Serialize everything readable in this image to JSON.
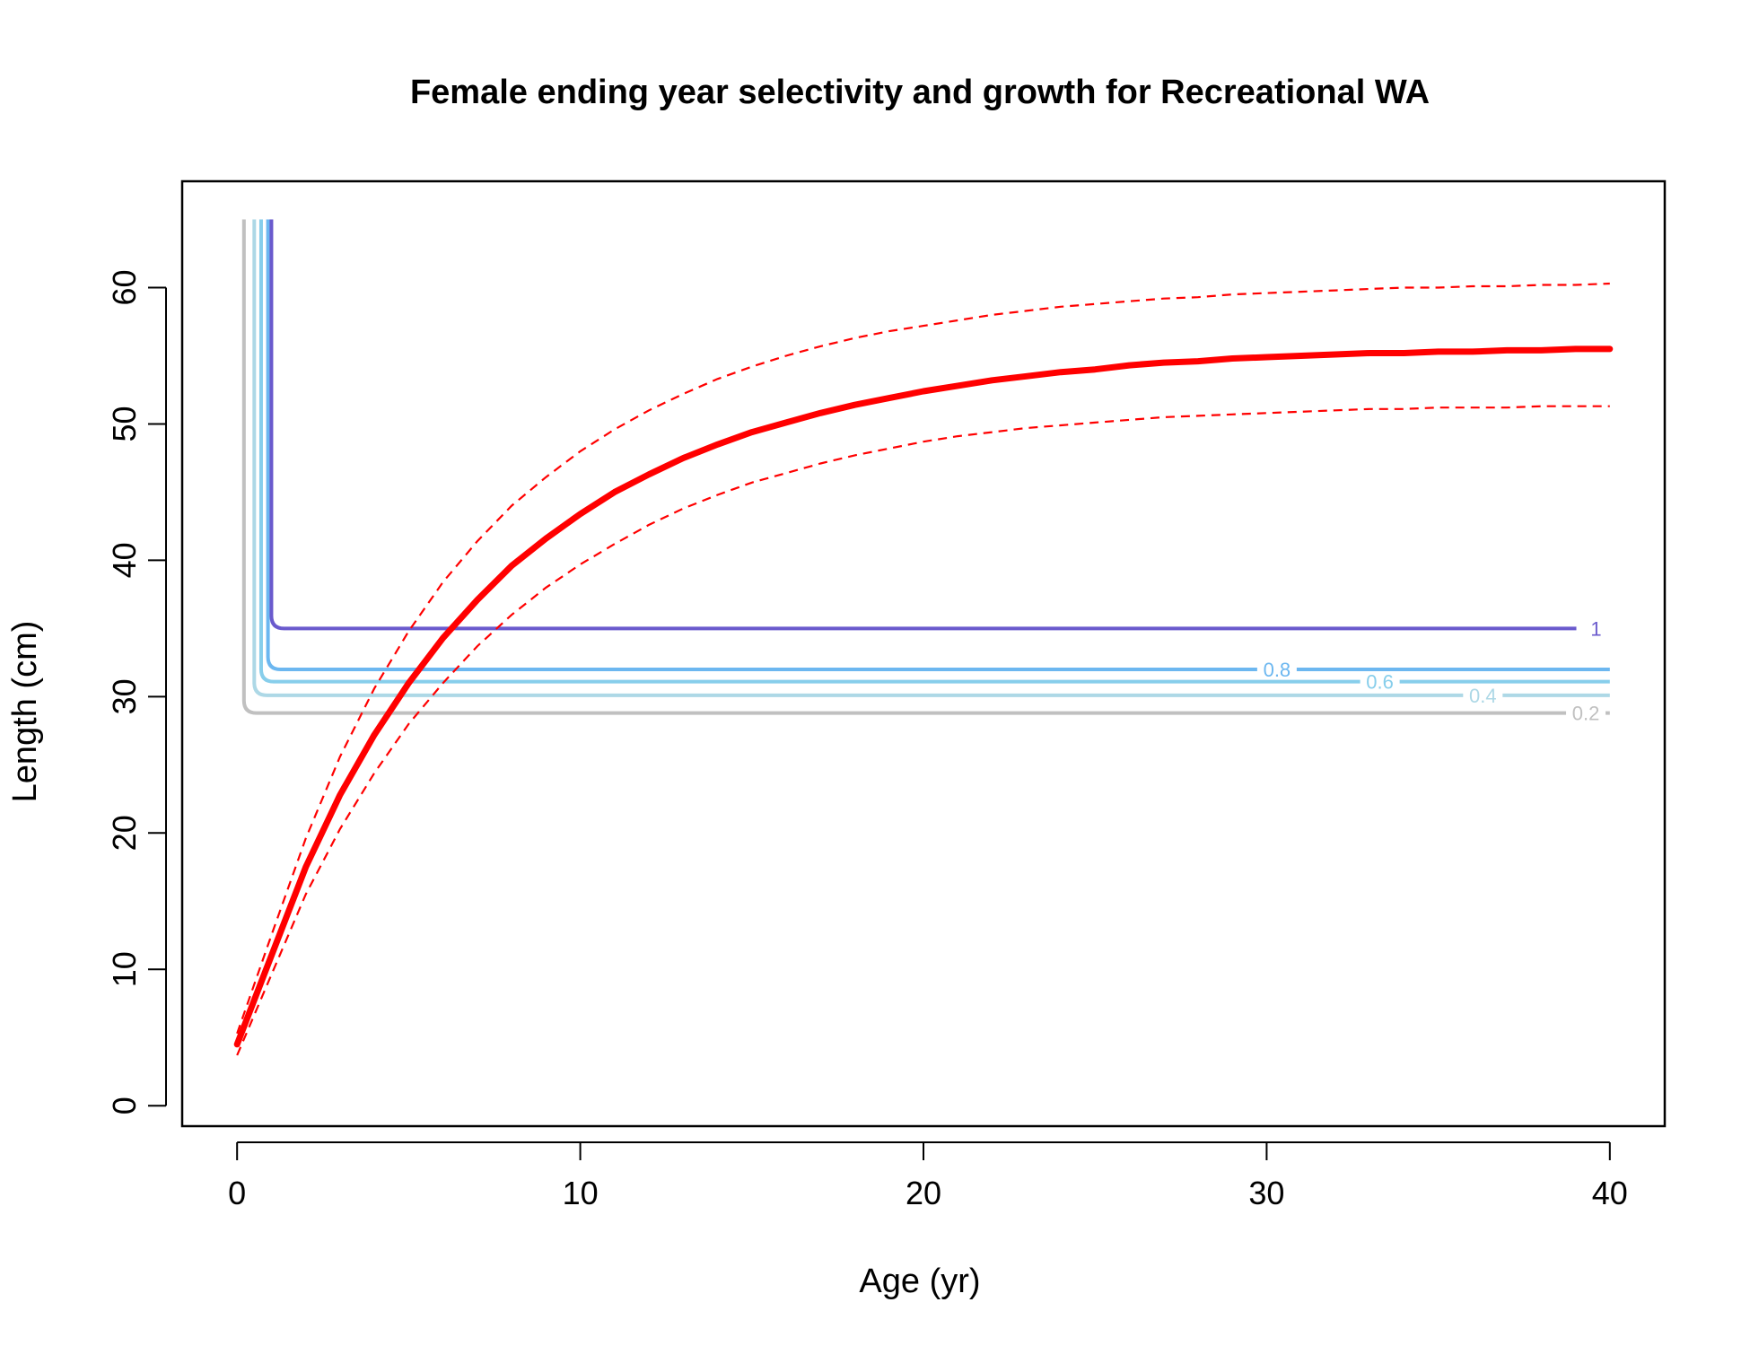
{
  "chart_data": {
    "type": "line",
    "title": "Female ending year selectivity and growth for Recreational WA",
    "xlabel": "Age (yr)",
    "ylabel": "Length (cm)",
    "xlim": [
      -1.6,
      41.6
    ],
    "ylim": [
      -1.5,
      67.8
    ],
    "xticks": [
      0,
      10,
      20,
      30,
      40
    ],
    "yticks": [
      0,
      10,
      20,
      30,
      40,
      50,
      60
    ],
    "grid": false,
    "growth": {
      "color": "#ff0000",
      "mean": {
        "x": [
          0,
          1,
          2,
          3,
          4,
          5,
          6,
          7,
          8,
          9,
          10,
          11,
          12,
          13,
          14,
          15,
          16,
          17,
          18,
          19,
          20,
          21,
          22,
          23,
          24,
          25,
          26,
          27,
          28,
          29,
          30,
          31,
          32,
          33,
          34,
          35,
          36,
          37,
          38,
          39,
          40
        ],
        "y": [
          4.5,
          11,
          17.5,
          22.8,
          27.2,
          31,
          34.3,
          37.1,
          39.6,
          41.6,
          43.4,
          45,
          46.3,
          47.5,
          48.5,
          49.4,
          50.1,
          50.8,
          51.4,
          51.9,
          52.4,
          52.8,
          53.2,
          53.5,
          53.8,
          54.0,
          54.3,
          54.5,
          54.6,
          54.8,
          54.9,
          55.0,
          55.1,
          55.2,
          55.2,
          55.3,
          55.3,
          55.4,
          55.4,
          55.5,
          55.5
        ]
      },
      "upper": {
        "x": [
          0,
          1,
          2,
          3,
          4,
          5,
          6,
          7,
          8,
          9,
          10,
          11,
          12,
          13,
          14,
          15,
          16,
          17,
          18,
          19,
          20,
          21,
          22,
          23,
          24,
          25,
          26,
          27,
          28,
          29,
          30,
          31,
          32,
          33,
          34,
          35,
          36,
          37,
          38,
          39,
          40
        ],
        "y": [
          5.3,
          12.5,
          19.6,
          25.6,
          30.6,
          34.8,
          38.4,
          41.4,
          44.0,
          46.1,
          48.0,
          49.6,
          51.0,
          52.2,
          53.3,
          54.2,
          55.0,
          55.7,
          56.3,
          56.8,
          57.2,
          57.6,
          58.0,
          58.3,
          58.6,
          58.8,
          59.0,
          59.2,
          59.3,
          59.5,
          59.6,
          59.7,
          59.8,
          59.9,
          60.0,
          60.0,
          60.1,
          60.1,
          60.2,
          60.2,
          60.3
        ]
      },
      "lower": {
        "x": [
          0,
          1,
          2,
          3,
          4,
          5,
          6,
          7,
          8,
          9,
          10,
          11,
          12,
          13,
          14,
          15,
          16,
          17,
          18,
          19,
          20,
          21,
          22,
          23,
          24,
          25,
          26,
          27,
          28,
          29,
          30,
          31,
          32,
          33,
          34,
          35,
          36,
          37,
          38,
          39,
          40
        ],
        "y": [
          3.7,
          9.6,
          15.5,
          20.3,
          24.4,
          28.0,
          31.0,
          33.7,
          36.0,
          38.0,
          39.7,
          41.2,
          42.6,
          43.8,
          44.8,
          45.7,
          46.4,
          47.1,
          47.7,
          48.2,
          48.7,
          49.1,
          49.4,
          49.7,
          49.9,
          50.1,
          50.3,
          50.5,
          50.6,
          50.7,
          50.8,
          50.9,
          51.0,
          51.1,
          51.1,
          51.2,
          51.2,
          51.2,
          51.3,
          51.3,
          51.3
        ]
      }
    },
    "selectivity_contours": [
      {
        "level": "0.2",
        "color": "#c0c0c0",
        "x_vertical": 0.2,
        "y_bottom": 28.8,
        "y_top": 65,
        "label_x": 39.3
      },
      {
        "level": "0.4",
        "color": "#add8e6",
        "x_vertical": 0.5,
        "y_bottom": 30.1,
        "y_top": 65,
        "label_x": 36.3
      },
      {
        "level": "0.6",
        "color": "#87ceeb",
        "x_vertical": 0.7,
        "y_bottom": 31.1,
        "y_top": 65,
        "label_x": 33.3
      },
      {
        "level": "0.8",
        "color": "#6cb7f0",
        "x_vertical": 0.9,
        "y_bottom": 32.0,
        "y_top": 65,
        "label_x": 30.3
      },
      {
        "level": "1",
        "color": "#6a5acd",
        "x_vertical": 1.0,
        "y_bottom": 35.0,
        "y_top": 65,
        "label_x": 39.6
      }
    ]
  }
}
